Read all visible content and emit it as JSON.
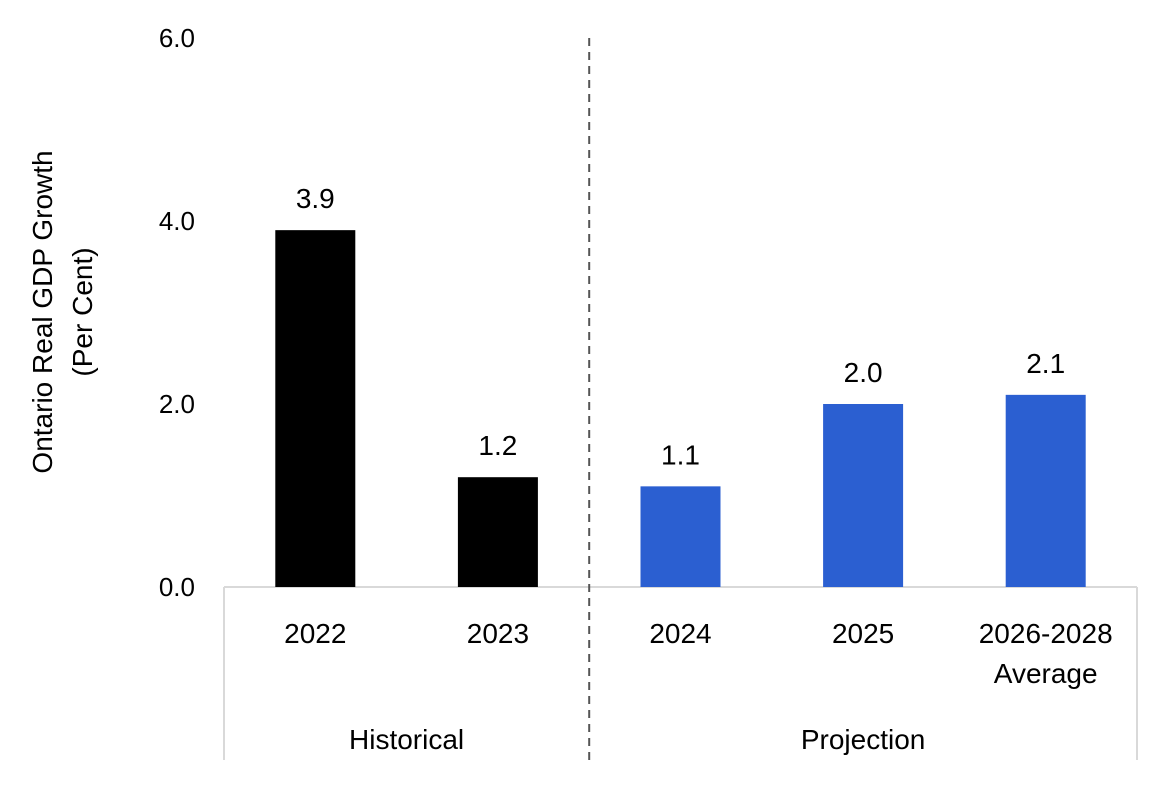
{
  "chart_data": {
    "type": "bar",
    "title": "",
    "ylabel": [
      "Ontario Real GDP Growth",
      "(Per Cent)"
    ],
    "xlabel": "",
    "ylim": [
      0,
      6
    ],
    "yticks": [
      "0.0",
      "2.0",
      "4.0",
      "6.0"
    ],
    "categories": [
      [
        "2022"
      ],
      [
        "2023"
      ],
      [
        "2024"
      ],
      [
        "2025"
      ],
      [
        "2026-2028",
        "Average"
      ]
    ],
    "values": [
      3.9,
      1.2,
      1.1,
      2.0,
      2.1
    ],
    "data_labels": [
      "3.9",
      "1.2",
      "1.1",
      "2.0",
      "2.1"
    ],
    "groups": [
      {
        "label": "Historical",
        "count": 2,
        "color": "#000000"
      },
      {
        "label": "Projection",
        "count": 3,
        "color": "#2B5FD1"
      }
    ],
    "grid": false,
    "legend": "none",
    "divider": "dashed line between Historical and Projection"
  }
}
